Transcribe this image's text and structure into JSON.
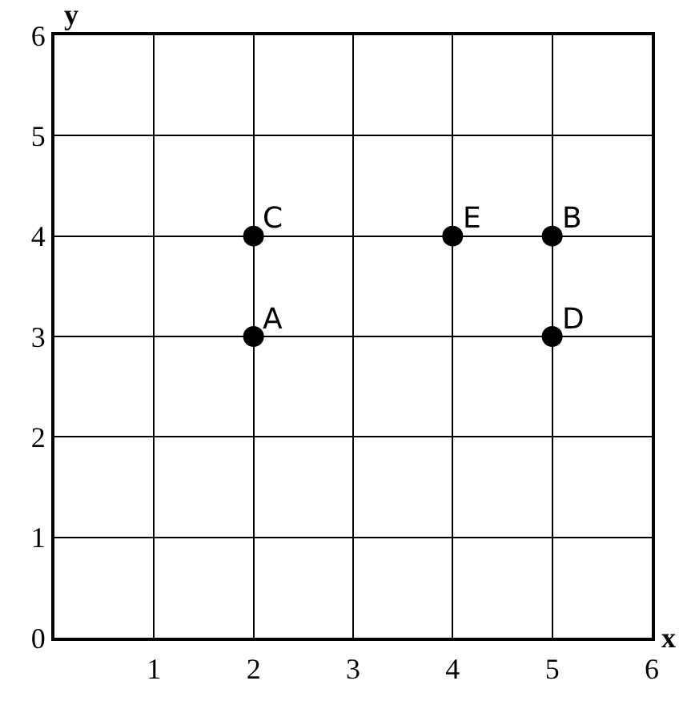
{
  "chart_data": {
    "type": "scatter",
    "xlabel": "x",
    "ylabel": "y",
    "x": [
      2,
      5,
      2,
      5,
      4
    ],
    "series": [
      {
        "color": "#000000",
        "values": [
          3,
          4,
          4,
          3,
          4
        ]
      }
    ],
    "marker": "circle",
    "grid": true,
    "xlim": [
      0,
      6
    ],
    "ylim": [
      0,
      6
    ],
    "xticks": [
      1,
      2,
      3,
      4,
      5,
      6
    ],
    "yticks": [
      0,
      1,
      2,
      3,
      4,
      5,
      6
    ],
    "annotations": [
      {
        "text": "A",
        "x": 2,
        "y": 3
      },
      {
        "text": "B",
        "x": 5,
        "y": 4
      },
      {
        "text": "C",
        "x": 2,
        "y": 4
      },
      {
        "text": "D",
        "x": 5,
        "y": 3
      },
      {
        "text": "E",
        "x": 4,
        "y": 4
      }
    ]
  }
}
